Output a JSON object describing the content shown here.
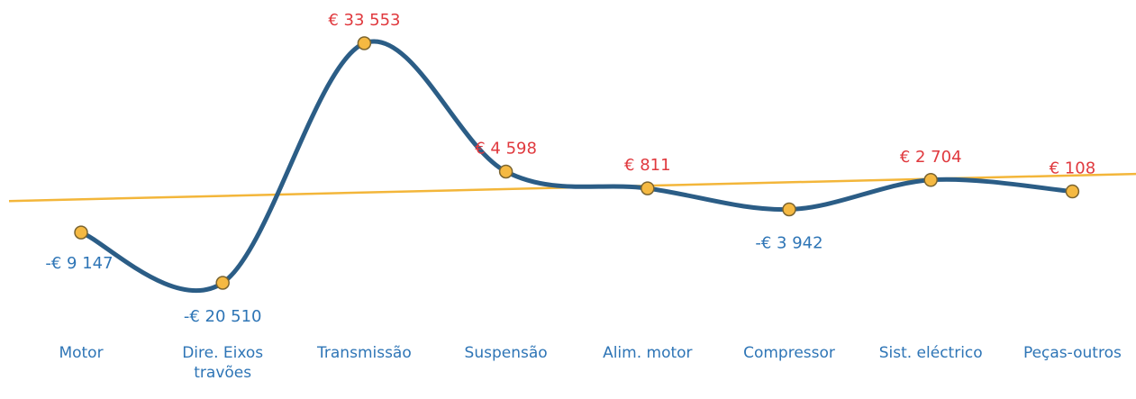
{
  "chart_data": {
    "type": "line",
    "categories": [
      "Motor",
      "Dire. Eixos travões",
      "Transmissão",
      "Suspensão",
      "Alim. motor",
      "Compressor",
      "Sist. eléctrico",
      "Peças-outros"
    ],
    "values": [
      -9147,
      -20510,
      33553,
      4598,
      811,
      -3942,
      2704,
      108
    ],
    "value_labels": [
      "-€ 9 147",
      "-€ 20 510",
      "€ 33 553",
      "€ 4 598",
      "€ 811",
      "-€ 3 942",
      "€ 2 704",
      "€ 108"
    ],
    "color": "#2b5d86",
    "marker_color": "#f5b942",
    "positive_label_color": "#e0393e",
    "negative_label_color": "#2e75b6",
    "smooth": true,
    "trendline": "linear",
    "trendline_color": "#f3b63a"
  }
}
